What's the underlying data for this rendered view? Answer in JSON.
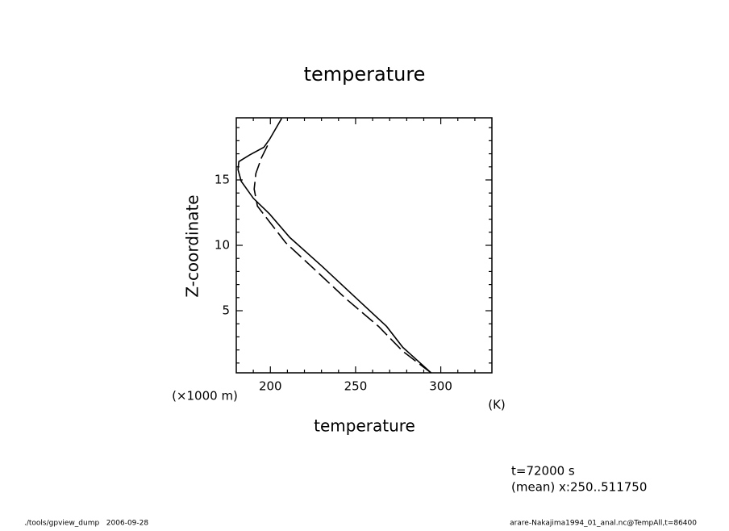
{
  "chart_data": {
    "type": "line",
    "title": "temperature",
    "x_label": "temperature",
    "x_unit": "(K)",
    "y_label": "Z-coordinate",
    "y_unit": "(×1000 m)",
    "xlim": [
      180,
      330
    ],
    "ylim": [
      0.25,
      19.75
    ],
    "xticks": [
      200,
      250,
      300
    ],
    "yticks": [
      5,
      10,
      15
    ],
    "xminorticks": [
      190,
      210,
      220,
      230,
      240,
      260,
      270,
      280,
      290,
      310,
      320
    ],
    "yminorticks": [
      1,
      2,
      3,
      4,
      6,
      7,
      8,
      9,
      11,
      12,
      13,
      14,
      16,
      17,
      18,
      19
    ],
    "series": [
      {
        "color": "#000000",
        "dash": "none",
        "x": [
          294.3,
          277.7,
          268.2,
          251.7,
          230.3,
          211.4,
          199.5,
          190,
          182.9,
          181,
          181.5,
          187.7,
          196.2,
          199.5,
          206.6
        ],
        "values": [
          0.25,
          2.2,
          3.8,
          5.8,
          8.4,
          10.6,
          12.4,
          13.6,
          14.9,
          15.8,
          16.4,
          16.9,
          17.5,
          18.1,
          19.7
        ]
      },
      {
        "color": "#000000",
        "dash": "18 6",
        "x": [
          294.3,
          277.7,
          263.5,
          244.5,
          225.6,
          209,
          199.5,
          192.4,
          190.5,
          191.5,
          194.8,
          198.6
        ],
        "values": [
          0.25,
          1.9,
          3.8,
          5.9,
          8.2,
          10.2,
          11.8,
          13.0,
          14.3,
          15.5,
          16.7,
          17.7
        ]
      }
    ],
    "annotations": [
      "t=72000 s",
      "(mean) x:250..511750"
    ],
    "footer_left": "./tools/gpview_dump   2006-09-28",
    "footer_right": "arare-Nakajima1994_01_anal.nc@TempAll,t=86400"
  }
}
